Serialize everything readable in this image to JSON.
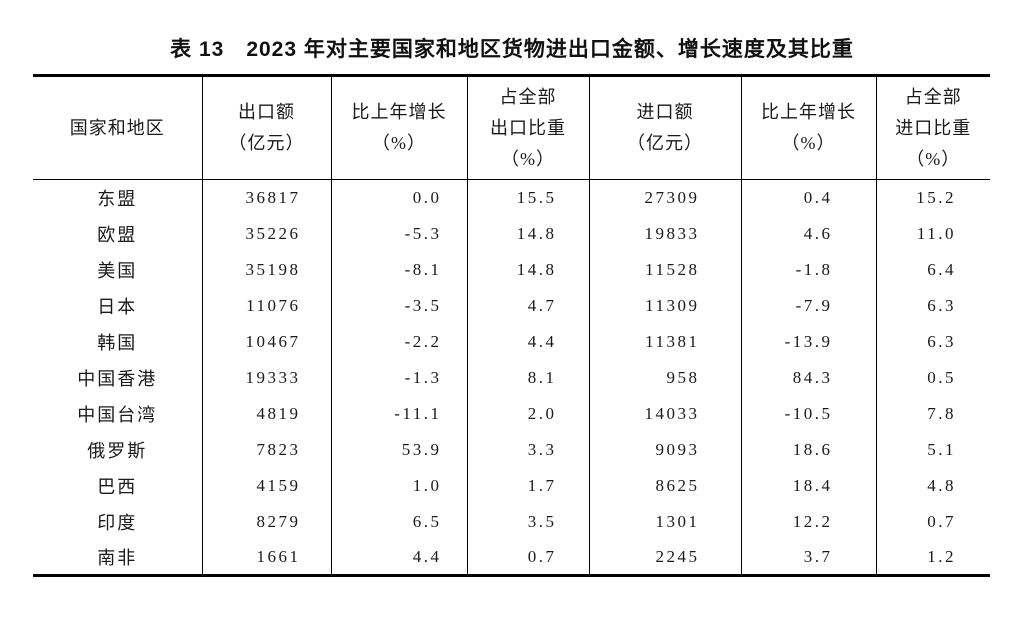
{
  "page": {
    "background_color": "#ffffff",
    "text_color": "#1a1a1a",
    "border_color": "#000000"
  },
  "table": {
    "title": "表 13　2023 年对主要国家和地区货物进出口金额、增长速度及其比重",
    "columns": [
      {
        "id": "region",
        "lines": [
          "国家和地区"
        ]
      },
      {
        "id": "export-value",
        "lines": [
          "出口额",
          "（亿元）"
        ]
      },
      {
        "id": "export-growth",
        "lines": [
          "比上年增长",
          "（%）"
        ]
      },
      {
        "id": "export-share",
        "lines": [
          "占全部",
          "出口比重",
          "（%）"
        ]
      },
      {
        "id": "import-value",
        "lines": [
          "进口额",
          "（亿元）"
        ]
      },
      {
        "id": "import-growth",
        "lines": [
          "比上年增长",
          "（%）"
        ]
      },
      {
        "id": "import-share",
        "lines": [
          "占全部",
          "进口比重",
          "（%）"
        ]
      }
    ],
    "rows": [
      {
        "region": "东盟",
        "values": [
          "36817",
          "0.0",
          "15.5",
          "27309",
          "0.4",
          "15.2"
        ]
      },
      {
        "region": "欧盟",
        "values": [
          "35226",
          "-5.3",
          "14.8",
          "19833",
          "4.6",
          "11.0"
        ]
      },
      {
        "region": "美国",
        "values": [
          "35198",
          "-8.1",
          "14.8",
          "11528",
          "-1.8",
          "6.4"
        ]
      },
      {
        "region": "日本",
        "values": [
          "11076",
          "-3.5",
          "4.7",
          "11309",
          "-7.9",
          "6.3"
        ]
      },
      {
        "region": "韩国",
        "values": [
          "10467",
          "-2.2",
          "4.4",
          "11381",
          "-13.9",
          "6.3"
        ]
      },
      {
        "region": "中国香港",
        "values": [
          "19333",
          "-1.3",
          "8.1",
          "958",
          "84.3",
          "0.5"
        ]
      },
      {
        "region": "中国台湾",
        "values": [
          "4819",
          "-11.1",
          "2.0",
          "14033",
          "-10.5",
          "7.8"
        ]
      },
      {
        "region": "俄罗斯",
        "values": [
          "7823",
          "53.9",
          "3.3",
          "9093",
          "18.6",
          "5.1"
        ]
      },
      {
        "region": "巴西",
        "values": [
          "4159",
          "1.0",
          "1.7",
          "8625",
          "18.4",
          "4.8"
        ]
      },
      {
        "region": "印度",
        "values": [
          "8279",
          "6.5",
          "3.5",
          "1301",
          "12.2",
          "0.7"
        ]
      },
      {
        "region": "南非",
        "values": [
          "1661",
          "4.4",
          "0.7",
          "2245",
          "3.7",
          "1.2"
        ]
      }
    ]
  },
  "chart_data": {
    "type": "table",
    "title": "表 13　2023 年对主要国家和地区货物进出口金额、增长速度及其比重",
    "categories": [
      "东盟",
      "欧盟",
      "美国",
      "日本",
      "韩国",
      "中国香港",
      "中国台湾",
      "俄罗斯",
      "巴西",
      "印度",
      "南非"
    ],
    "series": [
      {
        "name": "出口额（亿元）",
        "values": [
          36817,
          35226,
          35198,
          11076,
          10467,
          19333,
          4819,
          7823,
          4159,
          8279,
          1661
        ]
      },
      {
        "name": "出口比上年增长（%）",
        "values": [
          0.0,
          -5.3,
          -8.1,
          -3.5,
          -2.2,
          -1.3,
          -11.1,
          53.9,
          1.0,
          6.5,
          4.4
        ]
      },
      {
        "name": "占全部出口比重（%）",
        "values": [
          15.5,
          14.8,
          14.8,
          4.7,
          4.4,
          8.1,
          2.0,
          3.3,
          1.7,
          3.5,
          0.7
        ]
      },
      {
        "name": "进口额（亿元）",
        "values": [
          27309,
          19833,
          11528,
          11309,
          11381,
          958,
          14033,
          9093,
          8625,
          1301,
          2245
        ]
      },
      {
        "name": "进口比上年增长（%）",
        "values": [
          0.4,
          4.6,
          -1.8,
          -7.9,
          -13.9,
          84.3,
          -10.5,
          18.6,
          18.4,
          12.2,
          3.7
        ]
      },
      {
        "name": "占全部进口比重（%）",
        "values": [
          15.2,
          11.0,
          6.4,
          6.3,
          6.3,
          0.5,
          7.8,
          5.1,
          4.8,
          0.7,
          1.2
        ]
      }
    ]
  }
}
